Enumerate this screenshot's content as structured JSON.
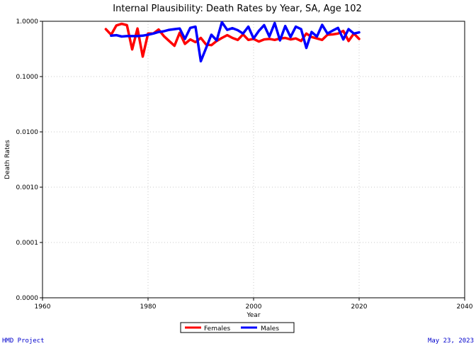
{
  "chart_data": {
    "type": "line",
    "title": "Internal Plausibility: Death Rates by Year, SA, Age 102",
    "xlabel": "Year",
    "ylabel": "Death Rates",
    "xlim": [
      1960,
      2040
    ],
    "ylim": [
      1e-05,
      1.0
    ],
    "yscale": "log",
    "xticks": [
      1960,
      1980,
      2000,
      2020,
      2040
    ],
    "xtick_labels": [
      "1960",
      "1980",
      "2000",
      "2020",
      "2040"
    ],
    "yticks": [
      1e-05,
      0.0001,
      0.001,
      0.01,
      0.1,
      1.0
    ],
    "ytick_labels": [
      "0.0000",
      "0.0001",
      "0.0010",
      "0.0100",
      "0.1000",
      "1.0000"
    ],
    "grid": true,
    "legend_position": "bottom-center",
    "series": [
      {
        "name": "Females",
        "color": "#ff0000",
        "x": [
          1972,
          1973,
          1974,
          1975,
          1976,
          1977,
          1978,
          1979,
          1980,
          1981,
          1982,
          1983,
          1984,
          1985,
          1986,
          1987,
          1988,
          1989,
          1990,
          1991,
          1992,
          1993,
          1994,
          1995,
          1996,
          1997,
          1998,
          1999,
          2000,
          2001,
          2002,
          2003,
          2004,
          2005,
          2006,
          2007,
          2008,
          2009,
          2010,
          2011,
          2012,
          2013,
          2014,
          2015,
          2016,
          2017,
          2018,
          2019,
          2020
        ],
        "y": [
          0.72,
          0.57,
          0.84,
          0.9,
          0.85,
          0.31,
          0.74,
          0.23,
          0.6,
          0.6,
          0.71,
          0.54,
          0.44,
          0.36,
          0.62,
          0.39,
          0.47,
          0.42,
          0.5,
          0.38,
          0.37,
          0.44,
          0.5,
          0.56,
          0.5,
          0.46,
          0.58,
          0.46,
          0.48,
          0.43,
          0.47,
          0.48,
          0.46,
          0.49,
          0.5,
          0.47,
          0.49,
          0.44,
          0.6,
          0.52,
          0.49,
          0.46,
          0.57,
          0.58,
          0.6,
          0.67,
          0.44,
          0.6,
          0.48
        ]
      },
      {
        "name": "Males",
        "color": "#0000ff",
        "x": [
          1973,
          1974,
          1975,
          1976,
          1977,
          1978,
          1979,
          1980,
          1981,
          1982,
          1983,
          1984,
          1985,
          1986,
          1987,
          1988,
          1989,
          1990,
          1991,
          1992,
          1993,
          1994,
          1995,
          1996,
          1997,
          1998,
          1999,
          2000,
          2001,
          2002,
          2003,
          2004,
          2005,
          2006,
          2007,
          2008,
          2009,
          2010,
          2011,
          2012,
          2013,
          2014,
          2015,
          2016,
          2017,
          2018,
          2019,
          2020
        ],
        "y": [
          0.55,
          0.56,
          0.53,
          0.54,
          0.54,
          0.54,
          0.55,
          0.57,
          0.6,
          0.64,
          0.66,
          0.7,
          0.72,
          0.74,
          0.48,
          0.76,
          0.8,
          0.19,
          0.33,
          0.57,
          0.45,
          0.96,
          0.7,
          0.75,
          0.69,
          0.6,
          0.8,
          0.49,
          0.67,
          0.85,
          0.53,
          0.93,
          0.45,
          0.82,
          0.52,
          0.8,
          0.72,
          0.33,
          0.64,
          0.53,
          0.86,
          0.6,
          0.68,
          0.76,
          0.47,
          0.72,
          0.6,
          0.63
        ]
      }
    ]
  },
  "footer": {
    "left": "HMD Project",
    "right": "May 23, 2023"
  }
}
